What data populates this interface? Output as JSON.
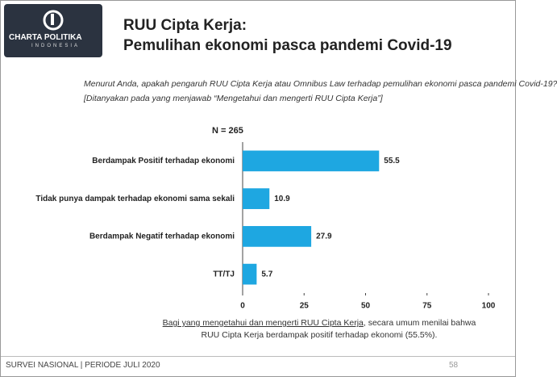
{
  "header": {
    "logo": "CHARTA POLITIKA",
    "logo_sub": "INDONESIA",
    "title_line1": "RUU Cipta Kerja:",
    "title_line2": "Pemulihan ekonomi pasca pandemi Covid-19"
  },
  "question": {
    "line1": "Menurut Anda, apakah pengaruh RUU Cipta Kerja atau Omnibus Law terhadap pemulihan ekonomi pasca pandemi Covid-19?",
    "line2": "[Ditanyakan pada yang menjawab “Mengetahui dan mengerti RUU Cipta Kerja”]"
  },
  "chart_data": {
    "type": "bar",
    "orientation": "horizontal",
    "note": "N = 265",
    "categories": [
      "Berdampak Positif terhadap ekonomi",
      "Tidak punya dampak terhadap ekonomi sama sekali",
      "Berdampak Negatif terhadap ekonomi",
      "TT/TJ"
    ],
    "values": [
      55.5,
      10.9,
      27.9,
      5.7
    ],
    "color": "#1ea7e1",
    "xlim": [
      0,
      100
    ],
    "xticks": [
      0,
      25,
      50,
      75,
      100
    ]
  },
  "footnote": {
    "underlined": "Bagi yang mengetahui dan mengerti RUU Cipta Kerja",
    "rest": ", secara umum  menilai bahwa RUU Cipta Kerja berdampak positif terhadap ekonomi (55.5%)."
  },
  "footer": {
    "left": "SURVEI NASIONAL | PERIODE JULI 2020",
    "page": "58"
  }
}
